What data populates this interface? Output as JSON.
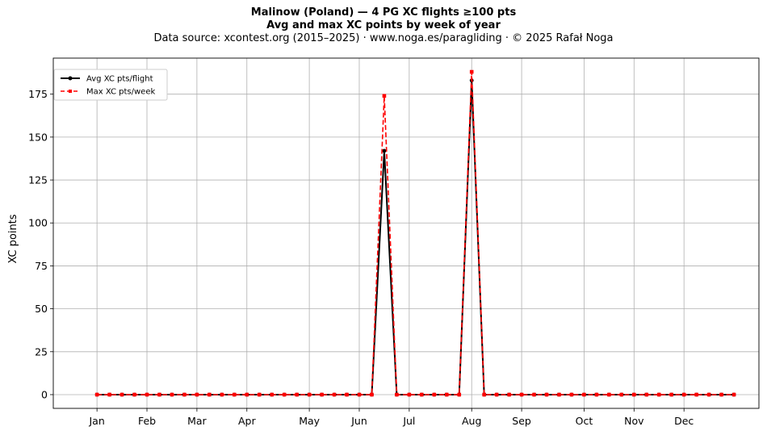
{
  "chart_data": {
    "type": "line",
    "title": "Malinow (Poland)  —  4 PG XC flights ≥100 pts",
    "subtitle": "Avg and max XC points by week of year",
    "source": "Data source: xcontest.org (2015–2025)  ·  www.noga.es/paragliding  ·  © 2025 Rafał Noga",
    "ylabel": "XC points",
    "xlabel": "",
    "ylim": [
      -8,
      196
    ],
    "yticks": [
      0,
      25,
      50,
      75,
      100,
      125,
      150,
      175
    ],
    "x_range": [
      -2.5,
      54
    ],
    "xticks": [
      {
        "label": "Jan",
        "week": 1
      },
      {
        "label": "Feb",
        "week": 5
      },
      {
        "label": "Mar",
        "week": 9
      },
      {
        "label": "Apr",
        "week": 13
      },
      {
        "label": "May",
        "week": 18
      },
      {
        "label": "Jun",
        "week": 22
      },
      {
        "label": "Jul",
        "week": 26
      },
      {
        "label": "Aug",
        "week": 31
      },
      {
        "label": "Sep",
        "week": 35
      },
      {
        "label": "Oct",
        "week": 40
      },
      {
        "label": "Nov",
        "week": 44
      },
      {
        "label": "Dec",
        "week": 48
      }
    ],
    "grid": true,
    "legend": "upper-left",
    "x": [
      1,
      2,
      3,
      4,
      5,
      6,
      7,
      8,
      9,
      10,
      11,
      12,
      13,
      14,
      15,
      16,
      17,
      18,
      19,
      20,
      21,
      22,
      23,
      24,
      25,
      26,
      27,
      28,
      29,
      30,
      31,
      32,
      33,
      34,
      35,
      36,
      37,
      38,
      39,
      40,
      41,
      42,
      43,
      44,
      45,
      46,
      47,
      48,
      49,
      50,
      51,
      52
    ],
    "series": [
      {
        "name": "Avg XC pts/flight",
        "color": "#000000",
        "style": "solid",
        "marker": "circle",
        "values": [
          0,
          0,
          0,
          0,
          0,
          0,
          0,
          0,
          0,
          0,
          0,
          0,
          0,
          0,
          0,
          0,
          0,
          0,
          0,
          0,
          0,
          0,
          0,
          142,
          0,
          0,
          0,
          0,
          0,
          0,
          183,
          0,
          0,
          0,
          0,
          0,
          0,
          0,
          0,
          0,
          0,
          0,
          0,
          0,
          0,
          0,
          0,
          0,
          0,
          0,
          0,
          0
        ]
      },
      {
        "name": "Max XC pts/week",
        "color": "#ff0000",
        "style": "dashed",
        "marker": "square",
        "values": [
          0,
          0,
          0,
          0,
          0,
          0,
          0,
          0,
          0,
          0,
          0,
          0,
          0,
          0,
          0,
          0,
          0,
          0,
          0,
          0,
          0,
          0,
          0,
          174,
          0,
          0,
          0,
          0,
          0,
          0,
          188,
          0,
          0,
          0,
          0,
          0,
          0,
          0,
          0,
          0,
          0,
          0,
          0,
          0,
          0,
          0,
          0,
          0,
          0,
          0,
          0,
          0
        ]
      }
    ]
  }
}
